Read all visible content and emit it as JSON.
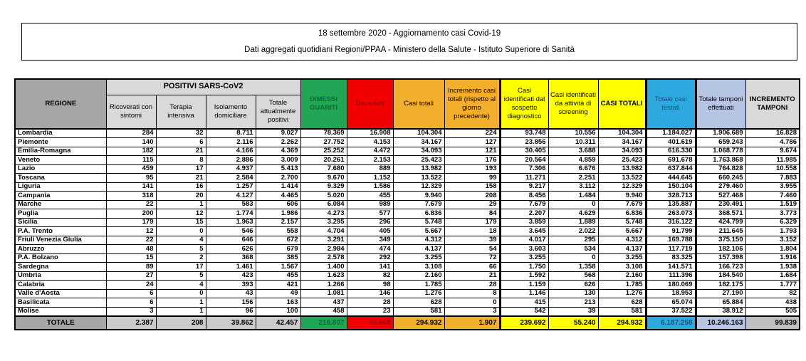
{
  "header": {
    "line1": "18 settembre 2020 - Aggiornamento casi Covid-19",
    "line2": "Dati aggregati quotidiani Regioni/PPAA - Ministero della Salute - Istituto Superiore di Sanità"
  },
  "colors": {
    "header_gray": "#a6a6a6",
    "header_lightgray": "#d9d9d9",
    "green_recovered": "#21a656",
    "green_text": "#0b6a38",
    "red_deceased": "#f10000",
    "red_text": "#9c0006",
    "orange_cases": "#f2af2b",
    "yellow_cases": "#ffff00",
    "blue_tested": "#2ea9e0",
    "blue_text": "#1f4e79",
    "periwinkle_swabs": "#b7c5e4",
    "total_row_gray": "#cbcbcb"
  },
  "table": {
    "group_header": "POSITIVI SARS-CoV2",
    "columns": [
      {
        "id": "regione",
        "label": "REGIONE",
        "style": "gray",
        "width": 128,
        "bold": true
      },
      {
        "id": "ricoverati",
        "label": "Ricoverati con sintomi",
        "style": "lightgray",
        "width": 70
      },
      {
        "id": "terapia-intensiva",
        "label": "Terapia intensiva",
        "style": "lightgray",
        "width": 70
      },
      {
        "id": "isolamento",
        "label": "Isolamento domiciliare",
        "style": "lightgray",
        "width": 70
      },
      {
        "id": "attualmente-positivi",
        "label": "Totale attualmente positivi",
        "style": "lightgray",
        "width": 63
      },
      {
        "id": "dimessi-guariti",
        "label": "DIMESSI GUARITI",
        "style": "green",
        "width": 65
      },
      {
        "id": "deceduti",
        "label": "Deceduti",
        "style": "red",
        "width": 65
      },
      {
        "id": "casi-totali",
        "label": "Casi totali",
        "style": "orange",
        "width": 72
      },
      {
        "id": "incremento-casi",
        "label": "Incremento casi totali (rispetto al giorno precedente)",
        "style": "orange",
        "width": 78
      },
      {
        "id": "sospetto-diagnostico",
        "label": "Casi identificati dal sospetto diagnostico",
        "style": "yellow",
        "width": 68,
        "thickL": true
      },
      {
        "id": "attivita-screening",
        "label": "Casi identificati da attività di screening",
        "style": "yellow",
        "width": 70
      },
      {
        "id": "casi-totali-2",
        "label": "CASI TOTALI",
        "style": "yellow",
        "width": 67,
        "bold": true
      },
      {
        "id": "casi-testati",
        "label": "Totale casi testati",
        "style": "blue",
        "width": 70,
        "thickL": true,
        "thickR": true
      },
      {
        "id": "tamponi-effettuati",
        "label": "Totale tamponi effettuati",
        "style": "peri",
        "width": 70
      },
      {
        "id": "incremento-tamponi",
        "label": "INCREMENTO TAMPONI",
        "style": "lightgray2",
        "width": 76,
        "bold": true
      }
    ],
    "rows": [
      [
        "Lombardia",
        "284",
        "32",
        "8.711",
        "9.027",
        "78.369",
        "16.908",
        "104.304",
        "224",
        "93.748",
        "10.556",
        "104.304",
        "1.184.027",
        "1.906.689",
        "16.828"
      ],
      [
        "Piemonte",
        "140",
        "6",
        "2.116",
        "2.262",
        "27.752",
        "4.153",
        "34.167",
        "127",
        "23.856",
        "10.311",
        "34.167",
        "401.619",
        "659.243",
        "4.786"
      ],
      [
        "Emilia-Romagna",
        "182",
        "21",
        "4.166",
        "4.369",
        "25.252",
        "4.472",
        "34.093",
        "121",
        "30.405",
        "3.688",
        "34.093",
        "616.330",
        "1.068.778",
        "9.674"
      ],
      [
        "Veneto",
        "115",
        "8",
        "2.886",
        "3.009",
        "20.261",
        "2.153",
        "25.423",
        "176",
        "20.564",
        "4.859",
        "25.423",
        "691.678",
        "1.763.868",
        "11.985"
      ],
      [
        "Lazio",
        "459",
        "17",
        "4.937",
        "5.413",
        "7.680",
        "889",
        "13.982",
        "193",
        "7.306",
        "6.676",
        "13.982",
        "637.844",
        "764.828",
        "10.558"
      ],
      [
        "Toscana",
        "95",
        "21",
        "2.584",
        "2.700",
        "9.670",
        "1.152",
        "13.522",
        "99",
        "11.271",
        "2.251",
        "13.522",
        "444.645",
        "660.245",
        "7.883"
      ],
      [
        "Liguria",
        "141",
        "16",
        "1.257",
        "1.414",
        "9.329",
        "1.586",
        "12.329",
        "158",
        "9.217",
        "3.112",
        "12.329",
        "150.104",
        "279.460",
        "3.955"
      ],
      [
        "Campania",
        "318",
        "20",
        "4.127",
        "4.465",
        "5.020",
        "455",
        "9.940",
        "208",
        "8.456",
        "1.484",
        "9.940",
        "328.713",
        "527.468",
        "7.460"
      ],
      [
        "Marche",
        "22",
        "1",
        "583",
        "606",
        "6.084",
        "989",
        "7.679",
        "29",
        "7.679",
        "0",
        "7.679",
        "135.887",
        "230.491",
        "1.519"
      ],
      [
        "Puglia",
        "200",
        "12",
        "1.774",
        "1.986",
        "4.273",
        "577",
        "6.836",
        "84",
        "2.207",
        "4.629",
        "6.836",
        "263.073",
        "368.571",
        "3.773"
      ],
      [
        "Sicilia",
        "179",
        "15",
        "1.963",
        "2.157",
        "3.295",
        "296",
        "5.748",
        "179",
        "3.859",
        "1.889",
        "5.748",
        "316.122",
        "424.799",
        "6.329"
      ],
      [
        "P.A. Trento",
        "12",
        "0",
        "546",
        "558",
        "4.704",
        "405",
        "5.667",
        "18",
        "3.645",
        "2.022",
        "5.667",
        "91.799",
        "211.645",
        "1.793"
      ],
      [
        "Friuli Venezia Giulia",
        "22",
        "4",
        "646",
        "672",
        "3.291",
        "349",
        "4.312",
        "39",
        "4.017",
        "295",
        "4.312",
        "169.788",
        "375.150",
        "3.152"
      ],
      [
        "Abruzzo",
        "48",
        "5",
        "626",
        "679",
        "2.984",
        "474",
        "4.137",
        "54",
        "3.603",
        "534",
        "4.137",
        "117.719",
        "182.106",
        "1.804"
      ],
      [
        "P.A. Bolzano",
        "15",
        "2",
        "368",
        "385",
        "2.578",
        "292",
        "3.255",
        "72",
        "3.255",
        "0",
        "3.255",
        "83.325",
        "157.398",
        "1.916"
      ],
      [
        "Sardegna",
        "89",
        "17",
        "1.461",
        "1.567",
        "1.400",
        "141",
        "3.108",
        "66",
        "1.750",
        "1.358",
        "3.108",
        "141.571",
        "166.723",
        "1.938"
      ],
      [
        "Umbria",
        "27",
        "5",
        "423",
        "455",
        "1.623",
        "82",
        "2.160",
        "21",
        "1.592",
        "568",
        "2.160",
        "111.396",
        "184.540",
        "1.684"
      ],
      [
        "Calabria",
        "24",
        "4",
        "393",
        "421",
        "1.266",
        "98",
        "1.785",
        "28",
        "1.159",
        "626",
        "1.785",
        "180.069",
        "182.175",
        "1.777"
      ],
      [
        "Valle d'Aosta",
        "6",
        "0",
        "43",
        "49",
        "1.081",
        "146",
        "1.276",
        "8",
        "1.146",
        "130",
        "1.276",
        "18.953",
        "27.190",
        "82"
      ],
      [
        "Basilicata",
        "6",
        "1",
        "156",
        "163",
        "437",
        "28",
        "628",
        "0",
        "415",
        "213",
        "628",
        "65.074",
        "65.884",
        "438"
      ],
      [
        "Molise",
        "3",
        "1",
        "96",
        "100",
        "458",
        "23",
        "581",
        "3",
        "542",
        "39",
        "581",
        "37.522",
        "38.912",
        "505"
      ]
    ],
    "total_row": [
      "TOTALE",
      "2.387",
      "208",
      "39.862",
      "42.457",
      "216.807",
      "35.668",
      "294.932",
      "1.907",
      "239.692",
      "55.240",
      "294.932",
      "6.187.258",
      "10.246.163",
      "99.839"
    ]
  }
}
